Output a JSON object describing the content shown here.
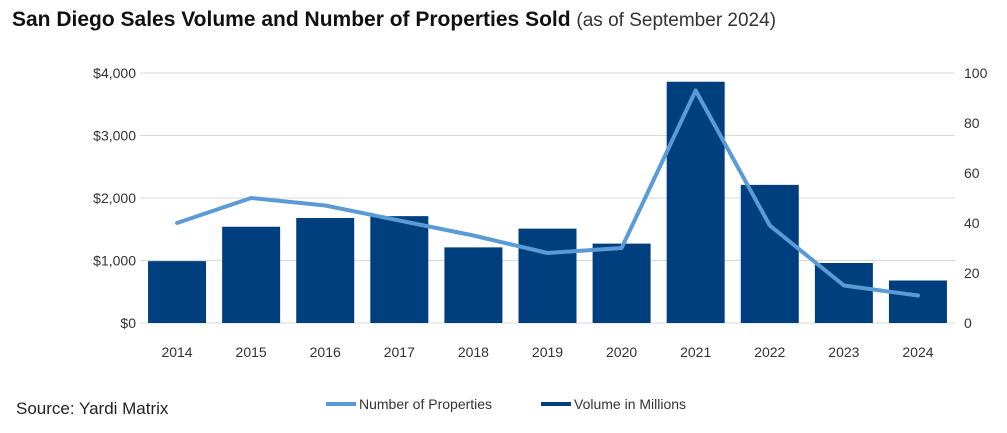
{
  "header": {
    "title": "San Diego Sales Volume and Number of Properties Sold",
    "subtitle": "(as of September 2024)"
  },
  "footer": {
    "source": "Source: Yardi Matrix"
  },
  "chart_data": {
    "type": "bar",
    "title": "San Diego Sales Volume and Number of Properties Sold",
    "subtitle": "(as of September 2024)",
    "categories": [
      "2014",
      "2015",
      "2016",
      "2017",
      "2018",
      "2019",
      "2020",
      "2021",
      "2022",
      "2023",
      "2024"
    ],
    "series": [
      {
        "name": "Volume in Millions",
        "type": "bar",
        "axis": "left",
        "color": "#003f7d",
        "values": [
          990,
          1540,
          1680,
          1710,
          1210,
          1510,
          1270,
          3860,
          2210,
          960,
          680
        ]
      },
      {
        "name": "Number of Properties",
        "type": "line",
        "axis": "right",
        "color": "#5b9bd5",
        "values": [
          40,
          50,
          47,
          41,
          35,
          28,
          30,
          93,
          39,
          15,
          11
        ]
      }
    ],
    "y_left": {
      "ylim": [
        0,
        4000
      ],
      "ticks": [
        0,
        1000,
        2000,
        3000,
        4000
      ],
      "tick_labels": [
        "$0",
        "$1,000",
        "$2,000",
        "$3,000",
        "$4,000"
      ]
    },
    "y_right": {
      "ylim": [
        0,
        100
      ],
      "ticks": [
        0,
        20,
        40,
        60,
        80,
        100
      ],
      "tick_labels": [
        "0",
        "20",
        "40",
        "60",
        "80",
        "100"
      ]
    },
    "grid": true,
    "legend": {
      "position": "bottom",
      "entries": [
        "Number of Properties",
        "Volume in Millions"
      ]
    }
  }
}
